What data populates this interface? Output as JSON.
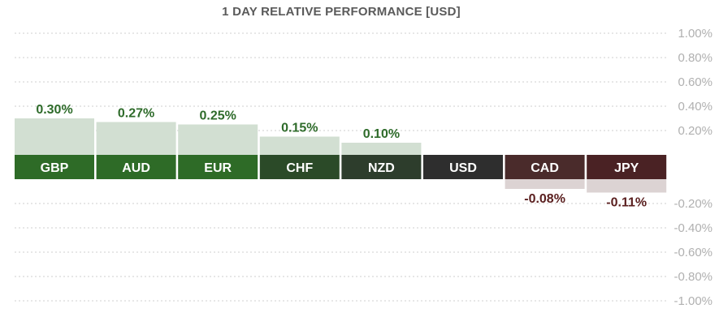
{
  "chart_data": {
    "type": "bar",
    "title": "1 DAY RELATIVE PERFORMANCE  [USD]",
    "categories": [
      "GBP",
      "AUD",
      "EUR",
      "CHF",
      "NZD",
      "USD",
      "CAD",
      "JPY"
    ],
    "values": [
      0.3,
      0.27,
      0.25,
      0.15,
      0.1,
      0.0,
      -0.08,
      -0.11
    ],
    "value_labels": [
      "0.30%",
      "0.27%",
      "0.25%",
      "0.15%",
      "0.10%",
      "",
      "-0.08%",
      "-0.11%"
    ],
    "y_tick_labels": [
      "1.00%",
      "0.80%",
      "0.60%",
      "0.40%",
      "0.20%",
      "-0.20%",
      "-0.40%",
      "-0.60%",
      "-0.80%",
      "-1.00%"
    ],
    "y_tick_values": [
      1.0,
      0.8,
      0.6,
      0.4,
      0.2,
      -0.2,
      -0.4,
      -0.6,
      -0.8,
      -1.0
    ],
    "ylim": [
      -1.0,
      1.0
    ],
    "grid": true,
    "label_colors": [
      "#2e6b27",
      "#2e6b27",
      "#2e6b27",
      "#2b4a28",
      "#2d3d2c",
      "#2e2e2e",
      "#4a2b2b",
      "#4a2224"
    ],
    "label_text_color": "#ffffff",
    "positive_bar_color": "#d2dfd2",
    "negative_bar_color": "#dcd3d3",
    "positive_value_color": "#2e6b2a",
    "negative_value_color": "#5a1f1f",
    "grid_color": "#cfcfcf",
    "tick_color": "#b0b0b0"
  }
}
